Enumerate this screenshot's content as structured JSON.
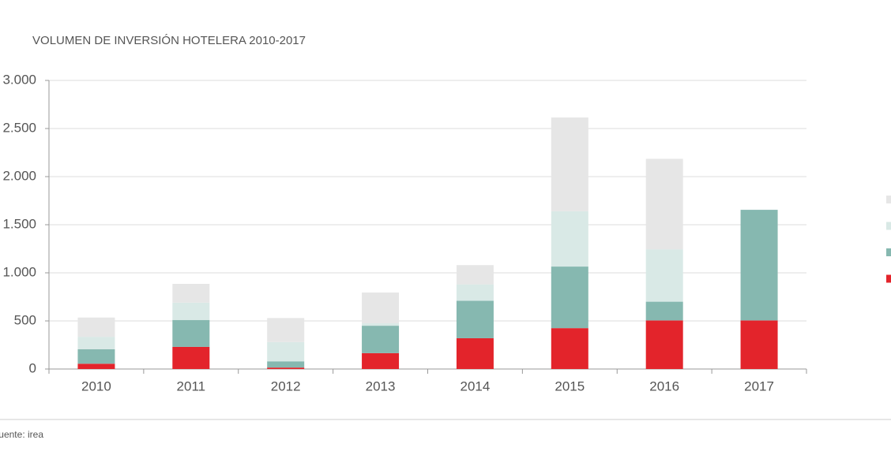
{
  "chart_data": {
    "type": "stacked_bar",
    "title": "VOLUMEN DE INVERSIÓN HOTELERA 2010-2017",
    "source": "Fuente: irea",
    "categories": [
      "2010",
      "2011",
      "2012",
      "2013",
      "2014",
      "2015",
      "2016",
      "2017"
    ],
    "series": [
      {
        "color": "#e3242b",
        "values": [
          55,
          230,
          15,
          165,
          320,
          425,
          505,
          505
        ]
      },
      {
        "color": "#86b8b0",
        "values": [
          150,
          280,
          65,
          285,
          390,
          640,
          195,
          1150
        ]
      },
      {
        "color": "#d9e9e6",
        "values": [
          130,
          180,
          200,
          25,
          170,
          575,
          545,
          0
        ]
      },
      {
        "color": "#e6e6e6",
        "values": [
          200,
          195,
          250,
          320,
          200,
          975,
          940,
          0
        ]
      }
    ],
    "ylim": [
      0,
      3000
    ],
    "yticks": [
      0,
      500,
      {
        "value": 1000,
        "label": "1.000"
      },
      {
        "value": 1500,
        "label": "1.500"
      },
      {
        "value": 2000,
        "label": "2.000"
      },
      {
        "value": 2500,
        "label": "2.500"
      },
      {
        "value": 3000,
        "label": "3.000"
      }
    ],
    "grid": true
  }
}
